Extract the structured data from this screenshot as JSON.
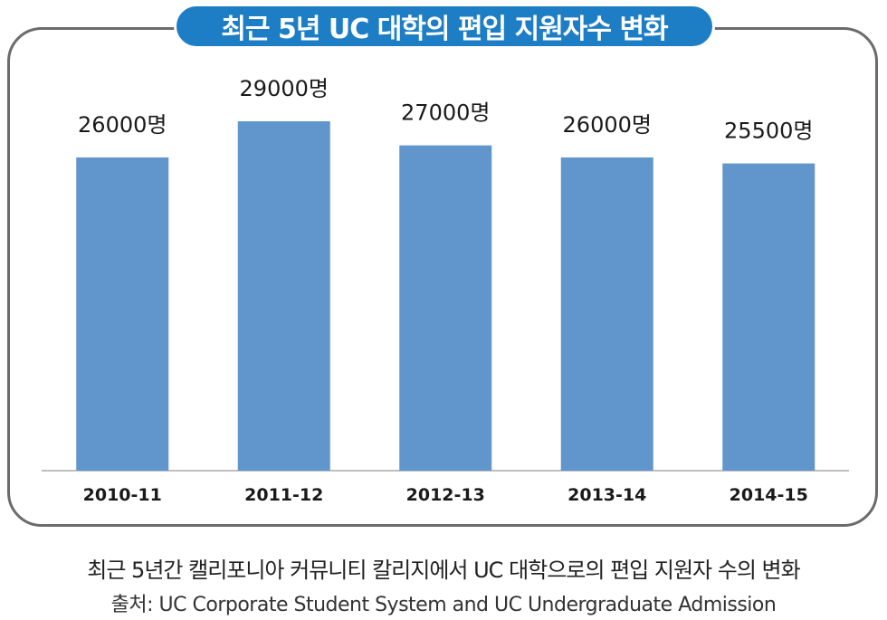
{
  "chart_data": {
    "type": "bar",
    "title": "최근 5년 UC 대학의 편입 지원자수 변화",
    "categories": [
      "2010-11",
      "2011-12",
      "2012-13",
      "2013-14",
      "2014-15"
    ],
    "values": [
      26000,
      29000,
      27000,
      26000,
      25500
    ],
    "data_labels": [
      "26000명",
      "29000명",
      "27000명",
      "26000명",
      "25500명"
    ],
    "xlabel": "",
    "ylabel": "",
    "ylim": [
      0,
      29000
    ],
    "grid": false,
    "legend": "none",
    "bar_color": "#6196cc"
  },
  "caption": "최근 5년간 캘리포니아 커뮤니티 칼리지에서 UC 대학으로의 편입 지원자 수의 변화",
  "source": "출처: UC Corporate Student System and UC Undergraduate Admission"
}
